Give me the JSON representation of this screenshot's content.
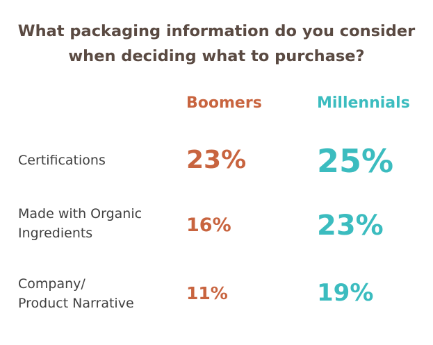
{
  "colors": {
    "title": "#5a4a42",
    "label": "#404040",
    "boomers": "#c8643f",
    "millennials": "#3bbcbf"
  },
  "chart_data": {
    "type": "table",
    "title_lines": [
      "What packaging information do you consider",
      "when deciding what to purchase?"
    ],
    "columns": [
      "Boomers",
      "Millennials"
    ],
    "rows": [
      {
        "label_lines": [
          "Certifications"
        ],
        "boomers": "23%",
        "millennials": "25%"
      },
      {
        "label_lines": [
          "Made with Organic",
          "Ingredients"
        ],
        "boomers": "16%",
        "millennials": "23%"
      },
      {
        "label_lines": [
          "Company/",
          "Product Narrative"
        ],
        "boomers": "11%",
        "millennials": "19%"
      }
    ]
  }
}
